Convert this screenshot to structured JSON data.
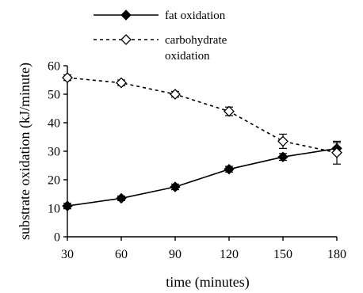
{
  "chart_data": {
    "type": "line",
    "title": "",
    "xlabel": "time (minutes)",
    "ylabel": "substrate oxidation (kJ/minute)",
    "x": [
      30,
      60,
      90,
      120,
      150,
      180
    ],
    "xlim": [
      30,
      180
    ],
    "ylim": [
      0,
      60
    ],
    "xticks": [
      "30",
      "60",
      "90",
      "120",
      "150",
      "180"
    ],
    "yticks": [
      "0",
      "10",
      "20",
      "30",
      "40",
      "50",
      "60"
    ],
    "grid": false,
    "legend_position": "top-center",
    "series": [
      {
        "name": "fat oxidation",
        "line_style": "solid",
        "marker": "filled-diamond",
        "color": "#000000",
        "values": [
          10.8,
          13.5,
          17.5,
          23.7,
          28.0,
          31.0
        ],
        "errors": [
          1.0,
          0.8,
          1.0,
          1.0,
          1.2,
          2.0
        ]
      },
      {
        "name": "carbohydrate oxidation",
        "line_style": "dashed",
        "marker": "open-diamond",
        "color": "#000000",
        "values": [
          55.8,
          54.0,
          50.0,
          44.0,
          33.5,
          29.5
        ],
        "errors": [
          1.0,
          1.0,
          1.0,
          1.5,
          2.5,
          4.0
        ]
      }
    ]
  }
}
